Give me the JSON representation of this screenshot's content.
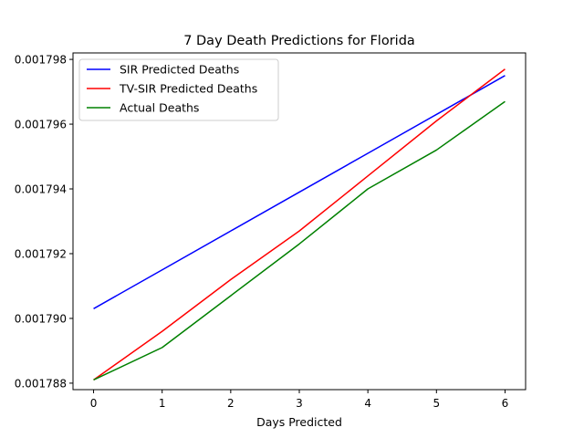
{
  "chart_data": {
    "type": "line",
    "title": "7 Day Death Predictions for Florida",
    "xlabel": "Days Predicted",
    "ylabel": "",
    "x": [
      0,
      1,
      2,
      3,
      4,
      5,
      6
    ],
    "xlim": [
      -0.3,
      6.3
    ],
    "ylim": [
      0.0017878,
      0.0017982
    ],
    "xticks": [
      "0",
      "1",
      "2",
      "3",
      "4",
      "5",
      "6"
    ],
    "yticks": [
      "0.001788",
      "0.001790",
      "0.001792",
      "0.001794",
      "0.001796",
      "0.001798"
    ],
    "ytick_values": [
      0.001788,
      0.00179,
      0.001792,
      0.001794,
      0.001796,
      0.001798
    ],
    "grid": false,
    "legend_position": "upper-left",
    "series": [
      {
        "name": "SIR Predicted Deaths",
        "color": "#0000ff",
        "values": [
          0.0017903,
          0.0017915,
          0.0017927,
          0.0017939,
          0.0017951,
          0.0017963,
          0.0017975
        ]
      },
      {
        "name": "TV-SIR Predicted Deaths",
        "color": "#ff0000",
        "values": [
          0.0017881,
          0.0017896,
          0.0017912,
          0.0017927,
          0.0017944,
          0.0017961,
          0.0017977
        ]
      },
      {
        "name": "Actual Deaths",
        "color": "#008000",
        "values": [
          0.0017881,
          0.0017891,
          0.0017907,
          0.0017923,
          0.001794,
          0.0017952,
          0.0017967
        ]
      }
    ]
  }
}
